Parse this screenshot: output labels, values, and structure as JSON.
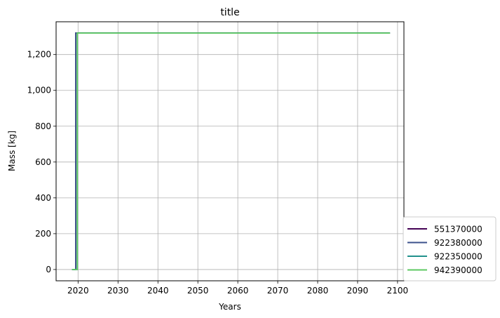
{
  "chart_data": {
    "type": "line",
    "title": "title",
    "xlabel": "Years",
    "ylabel": "Mass [kg]",
    "xlim": [
      2014.5,
      2101.6
    ],
    "ylim": [
      -63,
      1383
    ],
    "grid": true,
    "legend_position": "bottom-right, outside plot",
    "x_ticks": [
      2020,
      2030,
      2040,
      2050,
      2060,
      2070,
      2080,
      2090,
      2100
    ],
    "x_tick_labels": [
      "2020",
      "2030",
      "2040",
      "2050",
      "2060",
      "2070",
      "2080",
      "2090",
      "2100"
    ],
    "y_ticks": [
      0,
      200,
      400,
      600,
      800,
      1000,
      1200
    ],
    "y_tick_labels": [
      "0",
      "200",
      "400",
      "600",
      "800",
      "1,000",
      "1,200"
    ],
    "series": [
      {
        "name": "551370000",
        "color": "#440154",
        "x": [
          2018.5,
          2019.4,
          2019.4,
          2098.1
        ],
        "y": [
          0,
          0,
          1320,
          1320
        ]
      },
      {
        "name": "922380000",
        "color": "#3b528b",
        "x": [
          2018.5,
          2019.4,
          2019.4,
          2098.1
        ],
        "y": [
          0,
          0,
          1320,
          1320
        ]
      },
      {
        "name": "922350000",
        "color": "#21918c",
        "x": [
          2018.5,
          2019.8,
          2019.8,
          2098.1
        ],
        "y": [
          0,
          0,
          1320,
          1320
        ]
      },
      {
        "name": "942390000",
        "color": "#5ec962",
        "x": [
          2018.5,
          2019.8,
          2019.8,
          2098.1
        ],
        "y": [
          0,
          0,
          1320,
          1320
        ]
      }
    ]
  }
}
